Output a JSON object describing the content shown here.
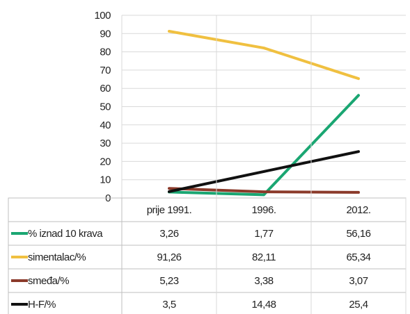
{
  "chart_data": {
    "type": "line",
    "title": "",
    "xlabel": "",
    "ylabel": "",
    "ylim": [
      0,
      100
    ],
    "yticks": [
      0,
      10,
      20,
      30,
      40,
      50,
      60,
      70,
      80,
      90,
      100
    ],
    "categories": [
      "prije 1991.",
      "1996.",
      "2012."
    ],
    "grid": true,
    "legend": "data-table-below",
    "series": [
      {
        "name": "% iznad 10 krava",
        "color": "#1aa672",
        "values": [
          3.26,
          1.77,
          56.16
        ],
        "labels": [
          "3,26",
          "1,77",
          "56,16"
        ]
      },
      {
        "name": "simentalac/%",
        "color": "#f0c040",
        "values": [
          91.26,
          82.11,
          65.34
        ],
        "labels": [
          "91,26",
          "82,11",
          "65,34"
        ]
      },
      {
        "name": "smeđa/%",
        "color": "#8b3a2a",
        "values": [
          5.23,
          3.38,
          3.07
        ],
        "labels": [
          "5,23",
          "3,38",
          "3,07"
        ]
      },
      {
        "name": "H-F/%",
        "color": "#111111",
        "values": [
          3.5,
          14.48,
          25.4
        ],
        "labels": [
          "3,5",
          "14,48",
          "25,4"
        ]
      }
    ]
  }
}
